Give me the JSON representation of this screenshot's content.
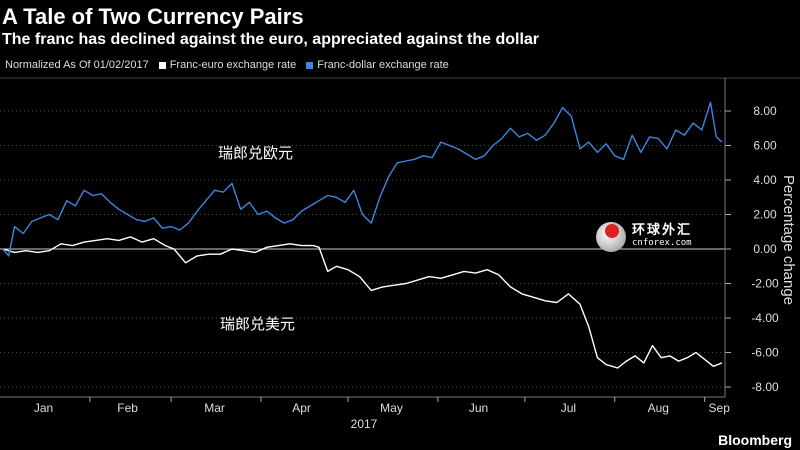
{
  "header": {
    "title": "A Tale of Two Currency Pairs",
    "subtitle": "The franc has declined against the euro, appreciated against the dollar"
  },
  "legend": {
    "note": "Normalized As Of 01/02/2017",
    "items": [
      {
        "label": "Franc-euro exchange rate",
        "color": "#ffffff"
      },
      {
        "label": "Franc-dollar exchange rate",
        "color": "#3d86e0"
      }
    ]
  },
  "annotations": {
    "upper_cn": "瑞郎兑欧元",
    "lower_cn": "瑞郎兑美元"
  },
  "watermark": {
    "cn": "环球外汇",
    "url": "cnforex.com"
  },
  "brand": "Bloomberg",
  "chart_data": {
    "type": "line",
    "ylabel": "Percentage change",
    "ylim": [
      -8,
      9
    ],
    "yticks": [
      8,
      6,
      4,
      2,
      0,
      -2,
      -4,
      -6,
      -8
    ],
    "ytick_labels": [
      "8.00",
      "6.00",
      "4.00",
      "2.00",
      "0.00",
      "-2.00",
      "-4.00",
      "-6.00",
      "-8.00"
    ],
    "x_range": [
      "2017-01-01",
      "2017-09-08"
    ],
    "x_ticks": [
      {
        "label": "Jan",
        "date": "2017-01-16"
      },
      {
        "label": "Feb",
        "date": "2017-02-14"
      },
      {
        "label": "Mar",
        "date": "2017-03-16"
      },
      {
        "label": "Apr",
        "date": "2017-04-15"
      },
      {
        "label": "May",
        "date": "2017-05-16"
      },
      {
        "label": "Jun",
        "date": "2017-06-15"
      },
      {
        "label": "Jul",
        "date": "2017-07-16"
      },
      {
        "label": "Aug",
        "date": "2017-08-16"
      },
      {
        "label": "Sep",
        "date": "2017-09-06"
      }
    ],
    "year_label": "2017",
    "zero_line": true,
    "series": [
      {
        "name": "Franc-euro exchange rate",
        "color": "#ffffff",
        "points": [
          [
            "2017-01-02",
            0.0
          ],
          [
            "2017-01-06",
            -0.2
          ],
          [
            "2017-01-10",
            -0.1
          ],
          [
            "2017-01-14",
            -0.2
          ],
          [
            "2017-01-18",
            -0.1
          ],
          [
            "2017-01-22",
            0.3
          ],
          [
            "2017-01-26",
            0.2
          ],
          [
            "2017-01-30",
            0.4
          ],
          [
            "2017-02-03",
            0.5
          ],
          [
            "2017-02-07",
            0.6
          ],
          [
            "2017-02-11",
            0.5
          ],
          [
            "2017-02-15",
            0.7
          ],
          [
            "2017-02-19",
            0.4
          ],
          [
            "2017-02-23",
            0.6
          ],
          [
            "2017-02-27",
            0.2
          ],
          [
            "2017-03-02",
            0.0
          ],
          [
            "2017-03-06",
            -0.8
          ],
          [
            "2017-03-10",
            -0.4
          ],
          [
            "2017-03-14",
            -0.3
          ],
          [
            "2017-03-18",
            -0.3
          ],
          [
            "2017-03-22",
            0.0
          ],
          [
            "2017-03-26",
            -0.1
          ],
          [
            "2017-03-30",
            -0.2
          ],
          [
            "2017-04-03",
            0.1
          ],
          [
            "2017-04-07",
            0.2
          ],
          [
            "2017-04-11",
            0.3
          ],
          [
            "2017-04-15",
            0.2
          ],
          [
            "2017-04-19",
            0.2
          ],
          [
            "2017-04-21",
            0.1
          ],
          [
            "2017-04-24",
            -1.3
          ],
          [
            "2017-04-27",
            -1.0
          ],
          [
            "2017-05-01",
            -1.2
          ],
          [
            "2017-05-05",
            -1.6
          ],
          [
            "2017-05-09",
            -2.4
          ],
          [
            "2017-05-13",
            -2.2
          ],
          [
            "2017-05-17",
            -2.1
          ],
          [
            "2017-05-21",
            -2.0
          ],
          [
            "2017-05-25",
            -1.8
          ],
          [
            "2017-05-29",
            -1.6
          ],
          [
            "2017-06-02",
            -1.7
          ],
          [
            "2017-06-06",
            -1.5
          ],
          [
            "2017-06-10",
            -1.3
          ],
          [
            "2017-06-14",
            -1.4
          ],
          [
            "2017-06-18",
            -1.2
          ],
          [
            "2017-06-22",
            -1.5
          ],
          [
            "2017-06-26",
            -2.2
          ],
          [
            "2017-06-30",
            -2.6
          ],
          [
            "2017-07-04",
            -2.8
          ],
          [
            "2017-07-08",
            -3.0
          ],
          [
            "2017-07-12",
            -3.1
          ],
          [
            "2017-07-16",
            -2.6
          ],
          [
            "2017-07-20",
            -3.2
          ],
          [
            "2017-07-23",
            -4.5
          ],
          [
            "2017-07-26",
            -6.3
          ],
          [
            "2017-07-29",
            -6.7
          ],
          [
            "2017-08-02",
            -6.9
          ],
          [
            "2017-08-05",
            -6.5
          ],
          [
            "2017-08-08",
            -6.2
          ],
          [
            "2017-08-11",
            -6.6
          ],
          [
            "2017-08-14",
            -5.6
          ],
          [
            "2017-08-17",
            -6.3
          ],
          [
            "2017-08-20",
            -6.2
          ],
          [
            "2017-08-23",
            -6.5
          ],
          [
            "2017-08-26",
            -6.3
          ],
          [
            "2017-08-29",
            -6.0
          ],
          [
            "2017-09-01",
            -6.4
          ],
          [
            "2017-09-04",
            -6.8
          ],
          [
            "2017-09-07",
            -6.6
          ]
        ]
      },
      {
        "name": "Franc-dollar exchange rate",
        "color": "#3d86e0",
        "points": [
          [
            "2017-01-02",
            0.0
          ],
          [
            "2017-01-04",
            -0.4
          ],
          [
            "2017-01-06",
            1.3
          ],
          [
            "2017-01-09",
            0.9
          ],
          [
            "2017-01-12",
            1.6
          ],
          [
            "2017-01-15",
            1.8
          ],
          [
            "2017-01-18",
            2.0
          ],
          [
            "2017-01-21",
            1.7
          ],
          [
            "2017-01-24",
            2.8
          ],
          [
            "2017-01-27",
            2.5
          ],
          [
            "2017-01-30",
            3.4
          ],
          [
            "2017-02-02",
            3.1
          ],
          [
            "2017-02-05",
            3.2
          ],
          [
            "2017-02-08",
            2.7
          ],
          [
            "2017-02-11",
            2.3
          ],
          [
            "2017-02-14",
            2.0
          ],
          [
            "2017-02-17",
            1.7
          ],
          [
            "2017-02-20",
            1.6
          ],
          [
            "2017-02-23",
            1.8
          ],
          [
            "2017-02-26",
            1.2
          ],
          [
            "2017-03-01",
            1.3
          ],
          [
            "2017-03-04",
            1.1
          ],
          [
            "2017-03-07",
            1.5
          ],
          [
            "2017-03-10",
            2.2
          ],
          [
            "2017-03-13",
            2.8
          ],
          [
            "2017-03-16",
            3.4
          ],
          [
            "2017-03-19",
            3.3
          ],
          [
            "2017-03-22",
            3.8
          ],
          [
            "2017-03-25",
            2.3
          ],
          [
            "2017-03-28",
            2.7
          ],
          [
            "2017-03-31",
            2.0
          ],
          [
            "2017-04-03",
            2.2
          ],
          [
            "2017-04-06",
            1.8
          ],
          [
            "2017-04-09",
            1.5
          ],
          [
            "2017-04-12",
            1.7
          ],
          [
            "2017-04-15",
            2.2
          ],
          [
            "2017-04-18",
            2.5
          ],
          [
            "2017-04-21",
            2.8
          ],
          [
            "2017-04-24",
            3.1
          ],
          [
            "2017-04-27",
            3.0
          ],
          [
            "2017-04-30",
            2.7
          ],
          [
            "2017-05-03",
            3.4
          ],
          [
            "2017-05-06",
            2.0
          ],
          [
            "2017-05-09",
            1.5
          ],
          [
            "2017-05-12",
            3.0
          ],
          [
            "2017-05-15",
            4.2
          ],
          [
            "2017-05-18",
            5.0
          ],
          [
            "2017-05-21",
            5.1
          ],
          [
            "2017-05-24",
            5.2
          ],
          [
            "2017-05-27",
            5.4
          ],
          [
            "2017-05-30",
            5.3
          ],
          [
            "2017-06-02",
            6.2
          ],
          [
            "2017-06-05",
            6.0
          ],
          [
            "2017-06-08",
            5.8
          ],
          [
            "2017-06-11",
            5.5
          ],
          [
            "2017-06-14",
            5.2
          ],
          [
            "2017-06-17",
            5.4
          ],
          [
            "2017-06-20",
            6.0
          ],
          [
            "2017-06-23",
            6.4
          ],
          [
            "2017-06-26",
            7.0
          ],
          [
            "2017-06-29",
            6.5
          ],
          [
            "2017-07-02",
            6.7
          ],
          [
            "2017-07-05",
            6.3
          ],
          [
            "2017-07-08",
            6.6
          ],
          [
            "2017-07-11",
            7.3
          ],
          [
            "2017-07-14",
            8.2
          ],
          [
            "2017-07-17",
            7.7
          ],
          [
            "2017-07-20",
            5.8
          ],
          [
            "2017-07-23",
            6.2
          ],
          [
            "2017-07-26",
            5.6
          ],
          [
            "2017-07-29",
            6.1
          ],
          [
            "2017-08-01",
            5.4
          ],
          [
            "2017-08-04",
            5.2
          ],
          [
            "2017-08-07",
            6.6
          ],
          [
            "2017-08-10",
            5.6
          ],
          [
            "2017-08-13",
            6.5
          ],
          [
            "2017-08-16",
            6.4
          ],
          [
            "2017-08-19",
            5.8
          ],
          [
            "2017-08-22",
            6.9
          ],
          [
            "2017-08-25",
            6.6
          ],
          [
            "2017-08-28",
            7.3
          ],
          [
            "2017-08-31",
            6.9
          ],
          [
            "2017-09-03",
            8.5
          ],
          [
            "2017-09-05",
            6.5
          ],
          [
            "2017-09-07",
            6.2
          ]
        ]
      }
    ]
  }
}
